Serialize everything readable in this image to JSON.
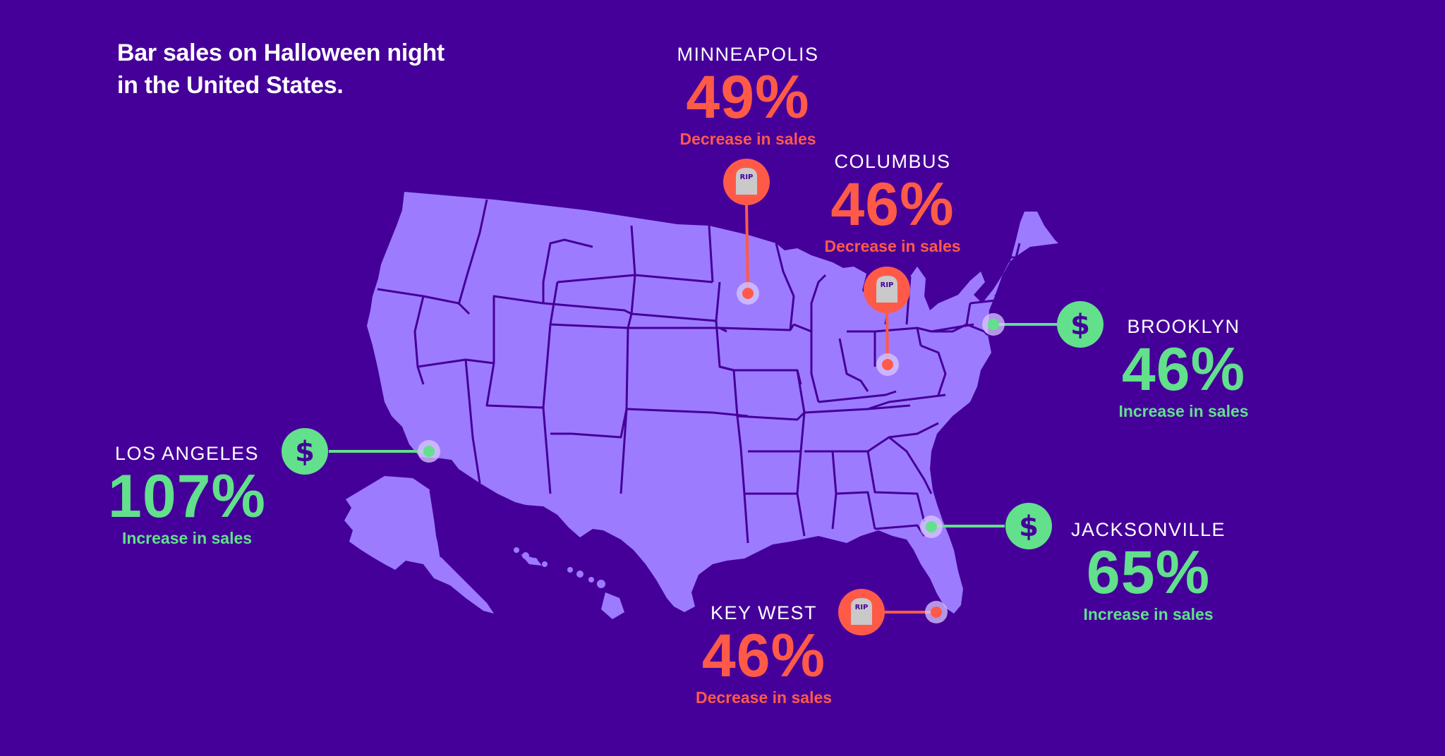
{
  "title": {
    "line1": "Bar sales on Halloween night",
    "line2": "in the United States."
  },
  "colors": {
    "background": "#45009a",
    "land": "#9d7bff",
    "borders": "#45009a",
    "increase": "#62e08b",
    "decrease": "#ff5a48",
    "tombstone": "#c9c9c9"
  },
  "icons": {
    "increase": "dollar-sign-icon",
    "decrease": "tombstone-rip-icon",
    "tombstone_text": "RIP"
  },
  "cities": [
    {
      "id": "minneapolis",
      "name": "MINNEAPOLIS",
      "value": "49%",
      "caption": "Decrease in sales",
      "trend": "down"
    },
    {
      "id": "columbus",
      "name": "COLUMBUS",
      "value": "46%",
      "caption": "Decrease in sales",
      "trend": "down"
    },
    {
      "id": "brooklyn",
      "name": "BROOKLYN",
      "value": "46%",
      "caption": "Increase in sales",
      "trend": "up"
    },
    {
      "id": "los-angeles",
      "name": "LOS ANGELES",
      "value": "107%",
      "caption": "Increase in sales",
      "trend": "up"
    },
    {
      "id": "jacksonville",
      "name": "JACKSONVILLE",
      "value": "65%",
      "caption": "Increase in sales",
      "trend": "up"
    },
    {
      "id": "key-west",
      "name": "KEY WEST",
      "value": "46%",
      "caption": "Decrease in sales",
      "trend": "down"
    }
  ]
}
